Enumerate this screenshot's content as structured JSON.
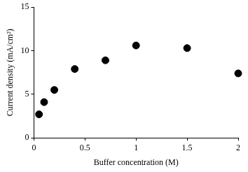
{
  "chart_data": {
    "type": "scatter",
    "x_label": "Buffer concentration (M)",
    "y_label": "Current density (mA/cm²)",
    "x": [
      0.05,
      0.1,
      0.2,
      0.4,
      0.7,
      1.0,
      1.5,
      2.0
    ],
    "values": [
      2.7,
      4.1,
      5.5,
      7.9,
      8.9,
      10.6,
      10.3,
      7.4
    ],
    "color": "#000000",
    "marker": "circle",
    "xlim": [
      0,
      2
    ],
    "xticks": [
      0,
      0.5,
      1,
      1.5,
      2
    ],
    "ylim": [
      0,
      15
    ],
    "yticks": [
      0,
      5,
      10,
      15
    ],
    "grid": false
  }
}
